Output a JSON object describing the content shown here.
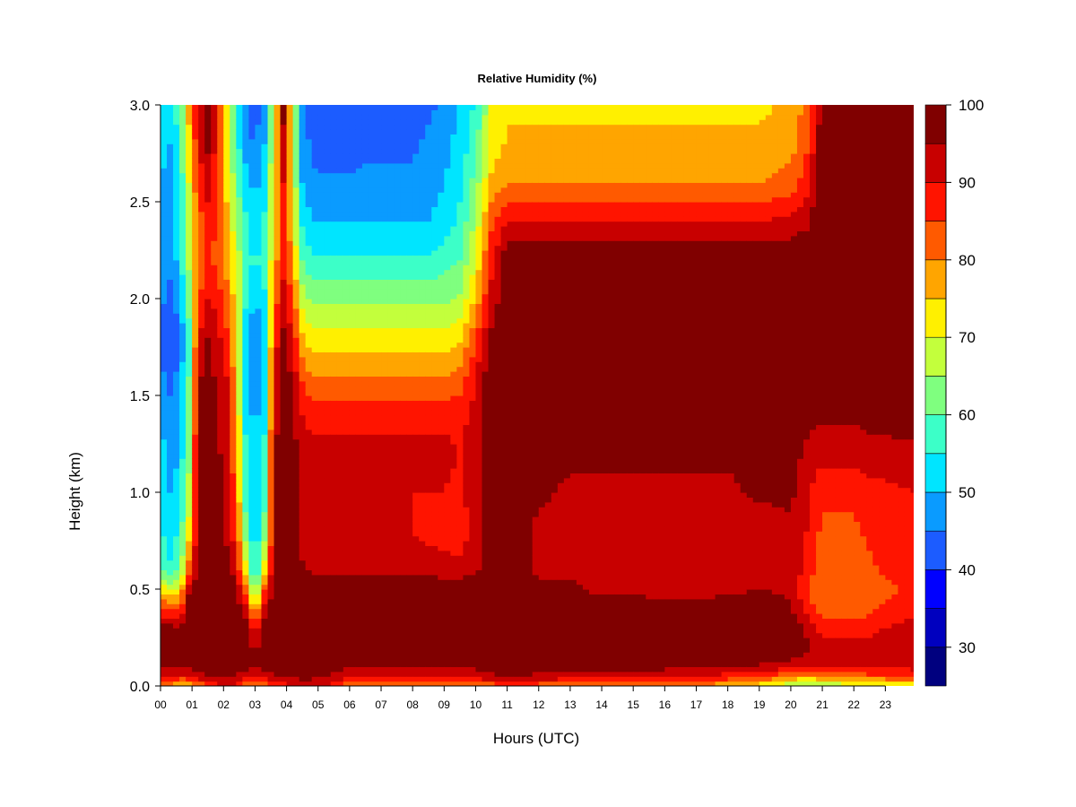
{
  "chart_data": {
    "type": "heatmap",
    "title": "Relative Humidity (%)",
    "xlabel": "Hours (UTC)",
    "ylabel": "Height (km)",
    "xlim": [
      0,
      23.9
    ],
    "ylim": [
      0.0,
      3.0
    ],
    "x_ticks": [
      0,
      1,
      2,
      3,
      4,
      5,
      6,
      7,
      8,
      9,
      10,
      11,
      12,
      13,
      14,
      15,
      16,
      17,
      18,
      19,
      20,
      21,
      22,
      23
    ],
    "x_tick_labels": [
      "00",
      "01",
      "02",
      "03",
      "04",
      "05",
      "06",
      "07",
      "08",
      "09",
      "10",
      "11",
      "12",
      "13",
      "14",
      "15",
      "16",
      "17",
      "18",
      "19",
      "20",
      "21",
      "22",
      "23"
    ],
    "y_ticks": [
      0.0,
      0.5,
      1.0,
      1.5,
      2.0,
      2.5,
      3.0
    ],
    "y_tick_labels": [
      "0.0",
      "0.5",
      "1.0",
      "1.5",
      "2.0",
      "2.5",
      "3.0"
    ],
    "colorbar": {
      "min": 25,
      "max": 100,
      "levels": [
        25,
        30,
        35,
        40,
        45,
        50,
        55,
        60,
        65,
        70,
        75,
        80,
        85,
        90,
        95,
        100
      ],
      "colors": [
        "#00007F",
        "#0000BF",
        "#0000FF",
        "#1C5CFF",
        "#0A9BFF",
        "#00E5FF",
        "#3CFFC8",
        "#7FFF7F",
        "#C3FF3C",
        "#FFF000",
        "#FFA500",
        "#FF5A00",
        "#FF1400",
        "#C80000",
        "#800000"
      ],
      "tick_values": [
        30,
        40,
        50,
        60,
        70,
        80,
        90,
        100
      ],
      "tick_labels": [
        "30",
        "40",
        "50",
        "60",
        "70",
        "80",
        "90",
        "100"
      ]
    },
    "x_hours": [
      0,
      0.3,
      0.6,
      0.9,
      1.2,
      1.5,
      1.8,
      2.1,
      2.4,
      2.7,
      3.0,
      3.3,
      3.6,
      3.9,
      4.2,
      4.5,
      4.8,
      5.1,
      5.4,
      5.7,
      6,
      6.5,
      7,
      7.5,
      8,
      8.5,
      9,
      9.5,
      10,
      10.5,
      10.8,
      11,
      11.5,
      12,
      13,
      14,
      15,
      16,
      17,
      18,
      19,
      20,
      20.5,
      20.8,
      21,
      21.5,
      22,
      22.5,
      23,
      23.9
    ],
    "y_km": [
      0.0,
      0.05,
      0.1,
      0.15,
      0.2,
      0.3,
      0.4,
      0.5,
      0.6,
      0.8,
      1.0,
      1.2,
      1.4,
      1.6,
      1.8,
      2.0,
      2.2,
      2.4,
      2.6,
      2.8,
      3.0
    ],
    "rh_values": [
      [
        80,
        78,
        72,
        75,
        80,
        85,
        88,
        90,
        88,
        82,
        80,
        82,
        85,
        88,
        90,
        92,
        92,
        90,
        88,
        85,
        82,
        80,
        80,
        80,
        80,
        80,
        80,
        80,
        80,
        82,
        84,
        84,
        82,
        82,
        82,
        80,
        80,
        80,
        78,
        76,
        72,
        64,
        62,
        62,
        66,
        66,
        66,
        66,
        68,
        70
      ],
      [
        92,
        90,
        88,
        90,
        92,
        95,
        96,
        96,
        95,
        92,
        90,
        92,
        94,
        95,
        96,
        96,
        96,
        95,
        94,
        92,
        90,
        90,
        90,
        90,
        90,
        90,
        90,
        90,
        92,
        94,
        95,
        96,
        95,
        94,
        92,
        92,
        92,
        92,
        90,
        88,
        85,
        80,
        78,
        78,
        80,
        82,
        82,
        84,
        84,
        85
      ],
      [
        96,
        96,
        95,
        96,
        97,
        98,
        98,
        98,
        98,
        96,
        95,
        96,
        97,
        98,
        98,
        98,
        98,
        98,
        97,
        96,
        96,
        96,
        96,
        96,
        96,
        96,
        96,
        96,
        96,
        97,
        98,
        98,
        98,
        97,
        96,
        96,
        96,
        96,
        96,
        95,
        94,
        92,
        90,
        90,
        90,
        90,
        90,
        90,
        90,
        92
      ],
      [
        98,
        98,
        97,
        98,
        98,
        99,
        99,
        99,
        99,
        98,
        96,
        98,
        98,
        99,
        99,
        99,
        99,
        99,
        99,
        99,
        99,
        99,
        99,
        99,
        99,
        99,
        99,
        99,
        99,
        99,
        99,
        99,
        99,
        99,
        99,
        99,
        99,
        99,
        99,
        98,
        98,
        96,
        94,
        94,
        95,
        94,
        94,
        94,
        95,
        95
      ],
      [
        99,
        99,
        98,
        99,
        99,
        99,
        99,
        99,
        99,
        98,
        94,
        98,
        99,
        99,
        99,
        99,
        99,
        99,
        99,
        99,
        99,
        99,
        99,
        99,
        99,
        99,
        99,
        99,
        99,
        99,
        99,
        99,
        99,
        99,
        99,
        99,
        99,
        99,
        99,
        99,
        99,
        98,
        96,
        94,
        92,
        92,
        92,
        92,
        94,
        94
      ],
      [
        97,
        97,
        96,
        99,
        99,
        99,
        99,
        99,
        99,
        97,
        88,
        97,
        99,
        99,
        99,
        99,
        99,
        99,
        99,
        99,
        99,
        99,
        99,
        99,
        99,
        99,
        99,
        99,
        99,
        99,
        99,
        99,
        99,
        99,
        99,
        99,
        99,
        99,
        99,
        99,
        99,
        98,
        94,
        90,
        88,
        88,
        88,
        88,
        90,
        92
      ],
      [
        86,
        84,
        84,
        97,
        99,
        99,
        99,
        99,
        98,
        92,
        72,
        92,
        99,
        99,
        99,
        99,
        99,
        99,
        99,
        99,
        99,
        99,
        99,
        99,
        99,
        99,
        99,
        99,
        99,
        99,
        99,
        99,
        98,
        98,
        97,
        97,
        97,
        96,
        96,
        97,
        98,
        96,
        88,
        84,
        82,
        82,
        82,
        84,
        86,
        88
      ],
      [
        74,
        70,
        72,
        94,
        99,
        99,
        99,
        99,
        97,
        84,
        60,
        84,
        98,
        99,
        99,
        99,
        99,
        99,
        99,
        99,
        99,
        99,
        99,
        99,
        99,
        99,
        99,
        99,
        99,
        99,
        99,
        99,
        97,
        96,
        96,
        94,
        94,
        94,
        94,
        94,
        95,
        94,
        86,
        82,
        80,
        80,
        80,
        82,
        84,
        86
      ],
      [
        60,
        56,
        60,
        82,
        98,
        99,
        98,
        97,
        92,
        72,
        52,
        72,
        96,
        99,
        99,
        96,
        94,
        94,
        94,
        94,
        94,
        94,
        94,
        94,
        94,
        94,
        92,
        92,
        94,
        99,
        99,
        99,
        96,
        94,
        94,
        92,
        92,
        92,
        92,
        92,
        94,
        94,
        88,
        84,
        82,
        82,
        82,
        84,
        86,
        86
      ],
      [
        56,
        52,
        56,
        72,
        96,
        98,
        96,
        94,
        86,
        62,
        50,
        62,
        94,
        99,
        98,
        92,
        90,
        90,
        90,
        90,
        90,
        90,
        90,
        90,
        90,
        88,
        88,
        86,
        94,
        99,
        99,
        99,
        96,
        94,
        92,
        90,
        90,
        92,
        90,
        90,
        92,
        94,
        90,
        86,
        84,
        84,
        84,
        86,
        86,
        88
      ],
      [
        55,
        50,
        52,
        66,
        96,
        98,
        96,
        93,
        82,
        58,
        50,
        58,
        94,
        99,
        97,
        91,
        90,
        90,
        90,
        90,
        90,
        90,
        90,
        90,
        90,
        90,
        90,
        88,
        94,
        99,
        99,
        99,
        97,
        96,
        94,
        94,
        94,
        94,
        94,
        94,
        96,
        96,
        92,
        88,
        86,
        86,
        86,
        88,
        88,
        90
      ],
      [
        52,
        48,
        50,
        64,
        96,
        98,
        96,
        93,
        80,
        56,
        50,
        56,
        94,
        99,
        97,
        93,
        92,
        92,
        92,
        92,
        92,
        92,
        92,
        92,
        92,
        92,
        92,
        90,
        94,
        99,
        99,
        99,
        98,
        97,
        96,
        96,
        96,
        96,
        96,
        96,
        96,
        97,
        94,
        92,
        92,
        92,
        92,
        94,
        94,
        94
      ],
      [
        50,
        46,
        48,
        62,
        96,
        98,
        96,
        92,
        78,
        54,
        48,
        54,
        92,
        99,
        96,
        90,
        88,
        88,
        88,
        88,
        88,
        88,
        88,
        88,
        88,
        88,
        88,
        88,
        92,
        99,
        99,
        99,
        99,
        98,
        98,
        98,
        98,
        98,
        98,
        98,
        98,
        98,
        97,
        96,
        96,
        96,
        96,
        96,
        96,
        97
      ],
      [
        46,
        44,
        46,
        60,
        94,
        97,
        94,
        90,
        76,
        52,
        46,
        52,
        90,
        98,
        94,
        84,
        80,
        80,
        80,
        80,
        80,
        80,
        80,
        80,
        80,
        80,
        80,
        82,
        90,
        99,
        99,
        99,
        99,
        99,
        99,
        99,
        99,
        99,
        99,
        99,
        99,
        99,
        99,
        99,
        99,
        99,
        99,
        99,
        99,
        99
      ],
      [
        42,
        40,
        44,
        58,
        90,
        95,
        92,
        86,
        74,
        52,
        44,
        50,
        86,
        96,
        90,
        76,
        72,
        72,
        72,
        72,
        72,
        72,
        72,
        72,
        72,
        72,
        72,
        74,
        84,
        96,
        98,
        99,
        99,
        99,
        99,
        99,
        99,
        99,
        99,
        99,
        99,
        99,
        99,
        99,
        99,
        99,
        99,
        99,
        99,
        99
      ],
      [
        46,
        44,
        48,
        62,
        84,
        90,
        88,
        82,
        72,
        56,
        50,
        54,
        80,
        92,
        84,
        68,
        64,
        64,
        64,
        64,
        64,
        64,
        64,
        64,
        64,
        64,
        64,
        66,
        76,
        92,
        96,
        99,
        99,
        99,
        99,
        99,
        99,
        99,
        99,
        99,
        99,
        99,
        99,
        99,
        99,
        99,
        99,
        99,
        99,
        99
      ],
      [
        48,
        46,
        52,
        66,
        80,
        86,
        84,
        78,
        70,
        58,
        54,
        58,
        76,
        88,
        78,
        60,
        56,
        56,
        56,
        56,
        56,
        56,
        56,
        56,
        56,
        56,
        58,
        60,
        70,
        88,
        94,
        99,
        99,
        99,
        99,
        99,
        99,
        99,
        99,
        99,
        99,
        99,
        99,
        99,
        99,
        99,
        99,
        99,
        99,
        99
      ],
      [
        48,
        46,
        52,
        68,
        82,
        88,
        84,
        76,
        66,
        56,
        52,
        56,
        74,
        88,
        74,
        54,
        50,
        50,
        50,
        50,
        50,
        50,
        50,
        50,
        50,
        50,
        52,
        56,
        66,
        84,
        88,
        90,
        90,
        90,
        90,
        90,
        90,
        90,
        90,
        90,
        90,
        92,
        94,
        98,
        99,
        99,
        99,
        99,
        99,
        99
      ],
      [
        50,
        48,
        54,
        70,
        86,
        92,
        86,
        74,
        62,
        52,
        48,
        52,
        72,
        90,
        72,
        50,
        46,
        46,
        46,
        46,
        46,
        46,
        46,
        46,
        46,
        48,
        50,
        54,
        62,
        76,
        78,
        80,
        80,
        80,
        80,
        80,
        80,
        80,
        80,
        80,
        80,
        82,
        88,
        94,
        99,
        99,
        99,
        99,
        99,
        99
      ],
      [
        52,
        50,
        56,
        74,
        90,
        96,
        88,
        72,
        58,
        48,
        44,
        50,
        72,
        94,
        72,
        48,
        44,
        42,
        42,
        42,
        42,
        44,
        44,
        44,
        44,
        46,
        48,
        52,
        58,
        72,
        74,
        76,
        76,
        76,
        76,
        76,
        76,
        76,
        76,
        76,
        76,
        78,
        84,
        92,
        99,
        99,
        99,
        99,
        99,
        99
      ],
      [
        54,
        52,
        58,
        76,
        92,
        98,
        90,
        70,
        56,
        46,
        42,
        48,
        72,
        96,
        72,
        46,
        42,
        40,
        40,
        40,
        40,
        42,
        42,
        42,
        42,
        44,
        46,
        50,
        56,
        70,
        72,
        74,
        74,
        74,
        74,
        74,
        74,
        74,
        74,
        74,
        74,
        76,
        82,
        90,
        99,
        99,
        99,
        99,
        99,
        99
      ]
    ]
  }
}
